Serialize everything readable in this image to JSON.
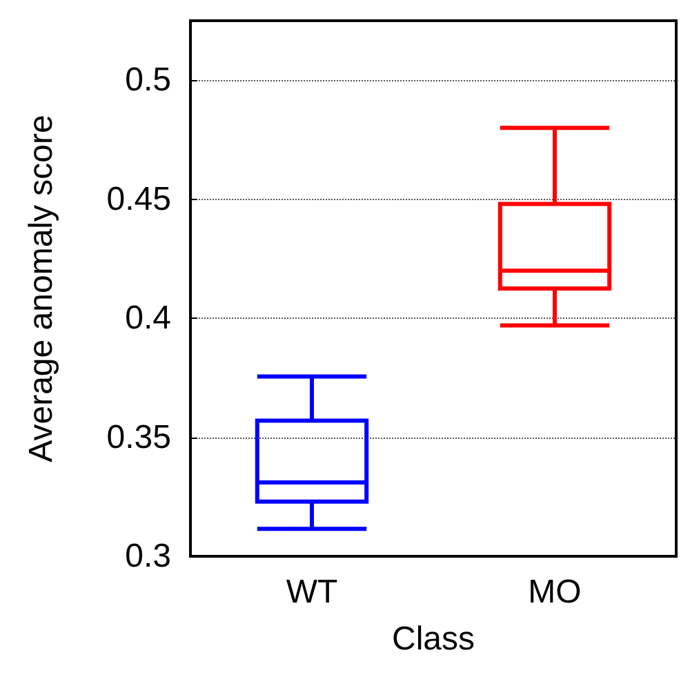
{
  "chart_data": {
    "type": "box",
    "xlabel": "Class",
    "ylabel": "Average anomaly score",
    "categories": [
      "WT",
      "MO"
    ],
    "colors": [
      "#0000ff",
      "#ff0000"
    ],
    "boxes": [
      {
        "low": 0.3115,
        "q1": 0.323,
        "median": 0.331,
        "q3": 0.357,
        "high": 0.3755
      },
      {
        "low": 0.397,
        "q1": 0.4125,
        "median": 0.42,
        "q3": 0.448,
        "high": 0.48
      }
    ],
    "ylim": [
      0.3,
      0.525
    ],
    "yticks": [
      0.3,
      0.35,
      0.4,
      0.45,
      0.5
    ],
    "grid": "y"
  }
}
